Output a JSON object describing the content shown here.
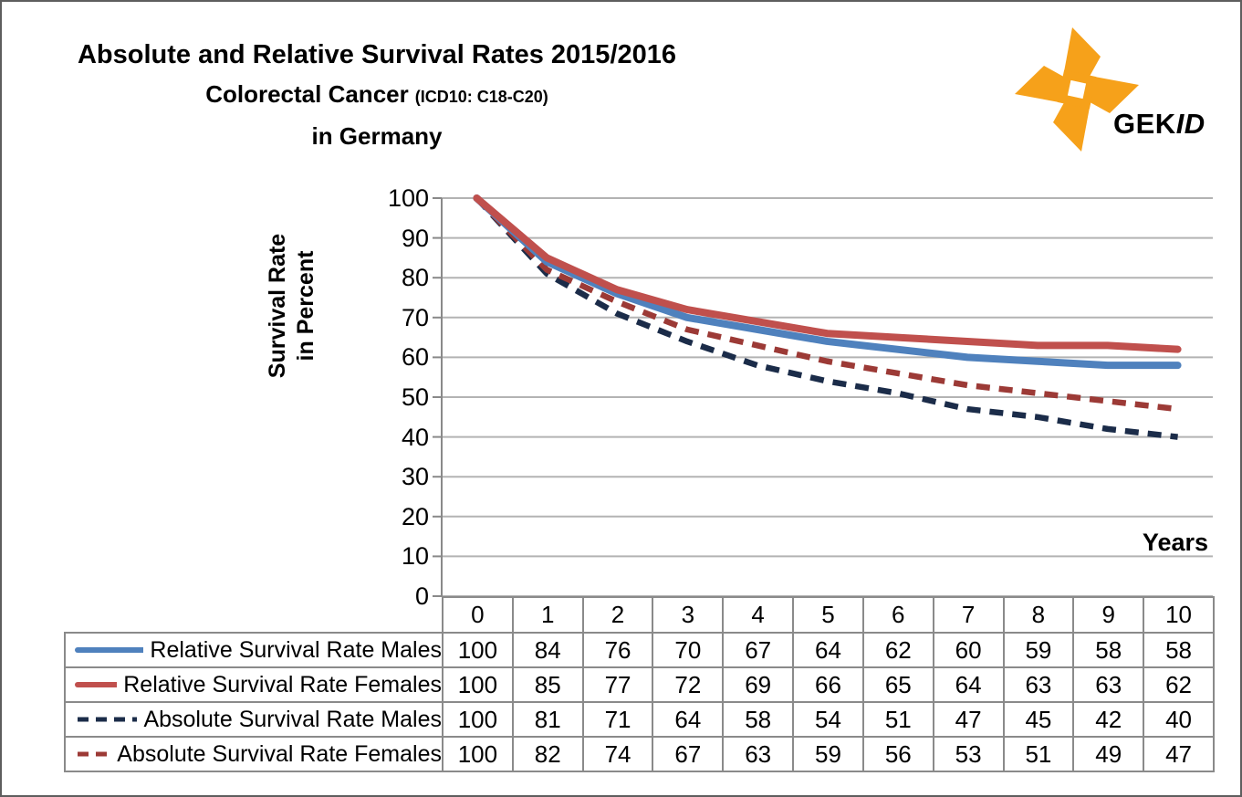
{
  "title": {
    "line1": "Absolute and Relative Survival Rates 2015/2016",
    "line2_main": "Colorectal Cancer",
    "line2_sub": "(ICD10: C18-C20)",
    "line3": "in Germany"
  },
  "logo": {
    "gek": "GEK",
    "id": "ID",
    "color": "#F6A11A"
  },
  "y_axis": {
    "title_line1": "Survival Rate",
    "title_line2": "in Percent",
    "ticks": [
      100,
      90,
      80,
      70,
      60,
      50,
      40,
      30,
      20,
      10,
      0
    ]
  },
  "x_axis": {
    "label": "Years"
  },
  "chart_data": {
    "type": "line",
    "title": "Absolute and Relative Survival Rates 2015/2016 Colorectal Cancer (ICD10: C18-C20) in Germany",
    "xlabel": "Years",
    "ylabel": "Survival Rate in Percent",
    "ylim": [
      0,
      100
    ],
    "grid": "horizontal",
    "legend_position": "table-left",
    "categories": [
      "0",
      "1",
      "2",
      "3",
      "4",
      "5",
      "6",
      "7",
      "8",
      "9",
      "10"
    ],
    "series": [
      {
        "name": "Relative Survival Rate Males",
        "style": "solid",
        "color": "#4F81BD",
        "values": [
          100,
          84,
          76,
          70,
          67,
          64,
          62,
          60,
          59,
          58,
          58
        ]
      },
      {
        "name": "Relative Survival Rate Females",
        "style": "solid",
        "color": "#C0504D",
        "values": [
          100,
          85,
          77,
          72,
          69,
          66,
          65,
          64,
          63,
          63,
          62
        ]
      },
      {
        "name": "Absolute Survival Rate Males",
        "style": "dashed",
        "color": "#1B2C49",
        "values": [
          100,
          81,
          71,
          64,
          58,
          54,
          51,
          47,
          45,
          42,
          40
        ]
      },
      {
        "name": "Absolute Survival Rate Females",
        "style": "dashed",
        "color": "#9C3A36",
        "values": [
          100,
          82,
          74,
          67,
          63,
          59,
          56,
          53,
          51,
          49,
          47
        ]
      }
    ],
    "grid_color": "#B3B3B3",
    "axis_color": "#898989"
  }
}
